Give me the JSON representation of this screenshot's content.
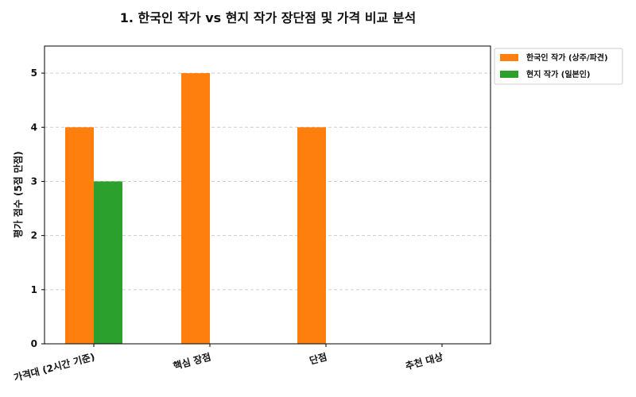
{
  "chart_data": {
    "type": "bar",
    "title": "1. 한국인 작가 vs 현지 작가 장단점 및 가격 비교 분석",
    "xlabel": "",
    "ylabel": "평가 점수 (5점 만점)",
    "categories": [
      "가격대 (2시간 기준)",
      "핵심 장점",
      "단점",
      "추천 대상"
    ],
    "series": [
      {
        "name": "한국인 작가 (상주/파견)",
        "color": "#ff7f0e",
        "values": [
          4,
          5,
          4,
          0
        ]
      },
      {
        "name": "현지 작가 (일본인)",
        "color": "#2ca02c",
        "values": [
          3,
          0,
          0,
          0
        ]
      }
    ],
    "ylim": [
      0,
      5.5
    ],
    "yticks": [
      0,
      1,
      2,
      3,
      4,
      5
    ],
    "grid": "y-dashed",
    "legend_position": "outside-top-right"
  }
}
